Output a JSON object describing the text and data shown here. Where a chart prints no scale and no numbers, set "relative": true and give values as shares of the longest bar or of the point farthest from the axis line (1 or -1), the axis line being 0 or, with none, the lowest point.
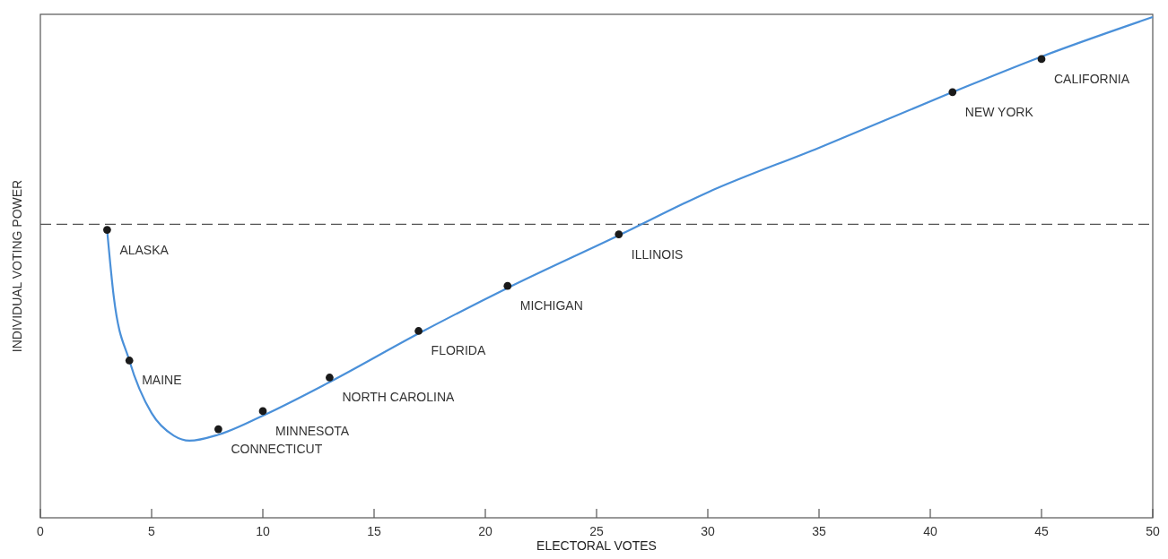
{
  "chart_data": {
    "type": "scatter",
    "relative": true,
    "xlabel": "ELECTORAL VOTES",
    "ylabel": "INDIVIDUAL VOTING POWER",
    "xlim": [
      0,
      50
    ],
    "xticks": [
      0,
      5,
      10,
      15,
      20,
      25,
      30,
      35,
      40,
      45,
      50
    ],
    "grid": false,
    "series": [
      {
        "type": "line",
        "color": "#4a90d9",
        "marker": "none",
        "x": [
          3,
          3.3,
          4,
          5,
          6,
          6.7,
          8,
          10,
          13,
          17,
          21,
          26,
          30,
          35,
          41,
          45,
          50
        ],
        "values": [
          0.575,
          0.441,
          0.314,
          0.209,
          0.164,
          0.154,
          0.166,
          0.204,
          0.271,
          0.368,
          0.459,
          0.564,
          0.65,
          0.739,
          0.85,
          0.921,
          1
        ]
      },
      {
        "color": "#1a1a1a",
        "marker": "circle",
        "x": [
          3,
          4,
          8,
          10,
          13,
          17,
          21,
          26,
          41,
          45
        ],
        "values": [
          0.575,
          0.314,
          0.177,
          0.213,
          0.28,
          0.373,
          0.463,
          0.566,
          0.85,
          0.916
        ]
      }
    ],
    "ref_lines": [
      {
        "axis": "y",
        "value": 0.586,
        "color": "#555555",
        "line_style": "dashed"
      }
    ],
    "annotations": [
      {
        "text": "ALASKA",
        "x": 3,
        "y": 0.575
      },
      {
        "text": "MAINE",
        "x": 4,
        "y": 0.314
      },
      {
        "text": "CONNECTICUT",
        "x": 8,
        "y": 0.177
      },
      {
        "text": "MINNESOTA",
        "x": 10,
        "y": 0.213
      },
      {
        "text": "NORTH CAROLINA",
        "x": 13,
        "y": 0.28
      },
      {
        "text": "FLORIDA",
        "x": 17,
        "y": 0.373
      },
      {
        "text": "MICHIGAN",
        "x": 21,
        "y": 0.463
      },
      {
        "text": "ILLINOIS",
        "x": 26,
        "y": 0.566
      },
      {
        "text": "NEW YORK",
        "x": 41,
        "y": 0.85
      },
      {
        "text": "CALIFORNIA",
        "x": 45,
        "y": 0.916
      }
    ]
  }
}
